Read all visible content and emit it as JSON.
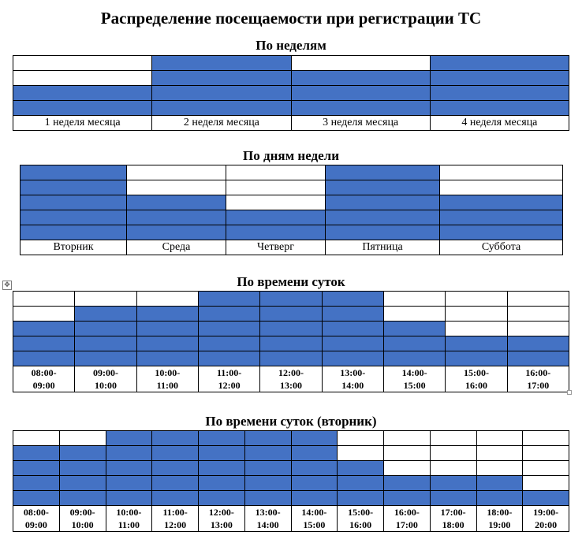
{
  "title": "Распределение посещаемости при регистрации ТС",
  "colors": {
    "fill": "#4472c4",
    "empty": "#ffffff"
  },
  "icons": {
    "table_move": "table-move-icon"
  },
  "sections": [
    {
      "title": "По неделям",
      "rows": 4,
      "labels": [
        "1 неделя месяца",
        "2 неделя месяца",
        "3 неделя месяца",
        "4 неделя месяца"
      ],
      "levels": [
        2,
        4,
        3,
        4
      ]
    },
    {
      "title": "По дням недели",
      "rows": 5,
      "labels": [
        "Вторник",
        "Среда",
        "Четверг",
        "Пятница",
        "Суббота"
      ],
      "levels": [
        5,
        3,
        2,
        5,
        3
      ]
    },
    {
      "title": "По времени суток",
      "rows": 5,
      "labels": [
        "08:00-\n09:00",
        "09:00-\n10:00",
        "10:00-\n11:00",
        "11:00-\n12:00",
        "12:00-\n13:00",
        "13:00-\n14:00",
        "14:00-\n15:00",
        "15:00-\n16:00",
        "16:00-\n17:00"
      ],
      "levels": [
        3,
        4,
        4,
        5,
        5,
        5,
        3,
        2,
        2
      ]
    },
    {
      "title": "По времени суток (вторник)",
      "rows": 5,
      "labels": [
        "08:00-\n09:00",
        "09:00-\n10:00",
        "10:00-\n11:00",
        "11:00-\n12:00",
        "12:00-\n13:00",
        "13:00-\n14:00",
        "14:00-\n15:00",
        "15:00-\n16:00",
        "16:00-\n17:00",
        "17:00-\n18:00",
        "18:00-\n19:00",
        "19:00-\n20:00"
      ],
      "levels": [
        4,
        4,
        5,
        5,
        5,
        5,
        5,
        3,
        2,
        2,
        2,
        1
      ]
    }
  ]
}
